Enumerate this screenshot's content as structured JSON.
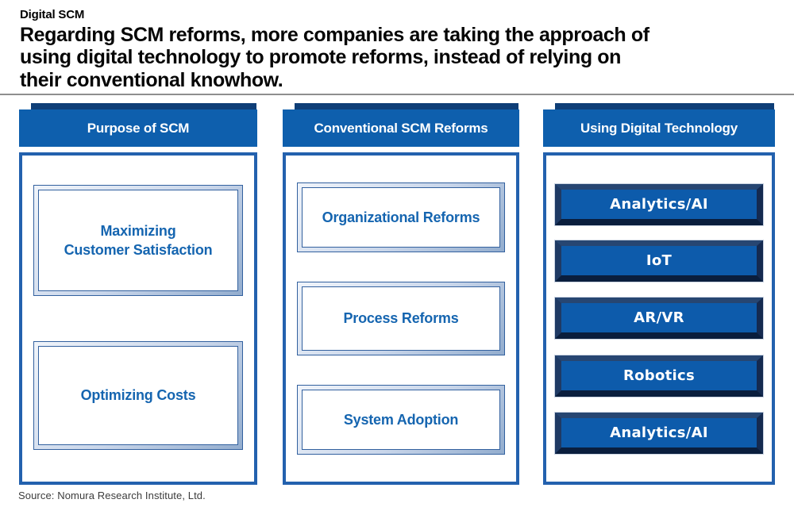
{
  "page": {
    "kicker": "Digital SCM",
    "heading": "Regarding SCM reforms, more companies are taking the approach of\nusing digital technology to promote reforms, instead of relying on\ntheir conventional knowhow.",
    "source": "Source: Nomura Research Institute, Ltd."
  },
  "colors": {
    "header_blue": "#0e5fad",
    "header_bevel_navy": "#0e3e77",
    "column_border_blue": "#2361ae",
    "frame_line_blue": "#33619f",
    "box_text_blue": "#1565b0",
    "button_face_blue": "#0d5bab",
    "button_bevel_dark": "#0a1e3d",
    "divider_gray": "#8f8f8f"
  },
  "columns": [
    {
      "title": "Purpose of SCM",
      "items": [
        "Maximizing\nCustomer Satisfaction",
        "Optimizing Costs"
      ]
    },
    {
      "title": "Conventional SCM Reforms",
      "items": [
        "Organizational Reforms",
        "Process Reforms",
        "System Adoption"
      ]
    },
    {
      "title": "Using Digital Technology",
      "items": [
        "Analytics/AI",
        "IoT",
        "AR/VR",
        "Robotics",
        "Analytics/AI"
      ]
    }
  ]
}
